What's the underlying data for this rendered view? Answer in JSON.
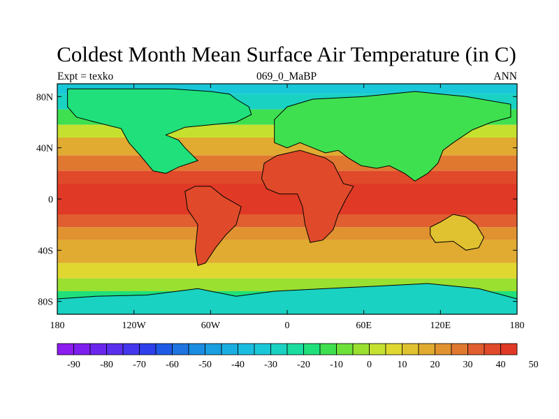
{
  "title": "Coldest Month Mean Surface Air Temperature (in C)",
  "subtitle_left": "Expt = texko",
  "subtitle_center": "069_0_MaBP",
  "subtitle_right": "ANN",
  "map": {
    "projection": "cylindrical-equidistant",
    "lon_range": [
      -180,
      180
    ],
    "lat_range": [
      -90,
      90
    ],
    "x_ticks": [
      {
        "value": -180,
        "label": "180"
      },
      {
        "value": -120,
        "label": "120W"
      },
      {
        "value": -60,
        "label": "60W"
      },
      {
        "value": 0,
        "label": "0"
      },
      {
        "value": 60,
        "label": "60E"
      },
      {
        "value": 120,
        "label": "120E"
      },
      {
        "value": 180,
        "label": "180"
      }
    ],
    "y_ticks": [
      {
        "value": 80,
        "label": "80N"
      },
      {
        "value": 40,
        "label": "40N"
      },
      {
        "value": 0,
        "label": "0"
      },
      {
        "value": -40,
        "label": "40S"
      },
      {
        "value": -80,
        "label": "80S"
      }
    ],
    "field_bands": [
      {
        "lat_from": 90,
        "lat_to": 82,
        "value": -35
      },
      {
        "lat_from": 82,
        "lat_to": 70,
        "value": -27
      },
      {
        "lat_from": 70,
        "lat_to": 58,
        "value": -12
      },
      {
        "lat_from": 58,
        "lat_to": 48,
        "value": 2
      },
      {
        "lat_from": 48,
        "lat_to": 34,
        "value": 15
      },
      {
        "lat_from": 34,
        "lat_to": 22,
        "value": 27
      },
      {
        "lat_from": 22,
        "lat_to": 12,
        "value": 36
      },
      {
        "lat_from": 12,
        "lat_to": -12,
        "value": 40
      },
      {
        "lat_from": -12,
        "lat_to": -22,
        "value": 33
      },
      {
        "lat_from": -22,
        "lat_to": -32,
        "value": 24
      },
      {
        "lat_from": -32,
        "lat_to": -50,
        "value": 16
      },
      {
        "lat_from": -50,
        "lat_to": -62,
        "value": 7
      },
      {
        "lat_from": -62,
        "lat_to": -72,
        "value": -3
      },
      {
        "lat_from": -72,
        "lat_to": -82,
        "value": -17
      },
      {
        "lat_from": -82,
        "lat_to": -90,
        "value": -26
      }
    ],
    "continents": [
      {
        "name": "north-america",
        "value": -20,
        "outline": [
          [
            -172,
            86
          ],
          [
            -90,
            86
          ],
          [
            -60,
            84
          ],
          [
            -45,
            82
          ],
          [
            -40,
            78
          ],
          [
            -30,
            72
          ],
          [
            -28,
            66
          ],
          [
            -40,
            60
          ],
          [
            -60,
            58
          ],
          [
            -80,
            56
          ],
          [
            -95,
            50
          ],
          [
            -85,
            46
          ],
          [
            -80,
            40
          ],
          [
            -70,
            30
          ],
          [
            -85,
            25
          ],
          [
            -95,
            20
          ],
          [
            -105,
            22
          ],
          [
            -115,
            34
          ],
          [
            -124,
            44
          ],
          [
            -130,
            55
          ],
          [
            -150,
            60
          ],
          [
            -165,
            64
          ],
          [
            -172,
            72
          ]
        ]
      },
      {
        "name": "europe-asia",
        "value": -12,
        "outline": [
          [
            -10,
            62
          ],
          [
            0,
            72
          ],
          [
            20,
            78
          ],
          [
            60,
            80
          ],
          [
            100,
            84
          ],
          [
            140,
            80
          ],
          [
            175,
            74
          ],
          [
            175,
            64
          ],
          [
            160,
            60
          ],
          [
            145,
            54
          ],
          [
            130,
            44
          ],
          [
            122,
            38
          ],
          [
            118,
            28
          ],
          [
            110,
            20
          ],
          [
            100,
            14
          ],
          [
            92,
            20
          ],
          [
            80,
            26
          ],
          [
            70,
            24
          ],
          [
            58,
            26
          ],
          [
            48,
            32
          ],
          [
            40,
            38
          ],
          [
            30,
            36
          ],
          [
            20,
            40
          ],
          [
            10,
            44
          ],
          [
            0,
            40
          ],
          [
            -10,
            44
          ]
        ]
      },
      {
        "name": "africa",
        "value": 38,
        "outline": [
          [
            -20,
            16
          ],
          [
            -18,
            28
          ],
          [
            -8,
            34
          ],
          [
            10,
            38
          ],
          [
            30,
            32
          ],
          [
            36,
            28
          ],
          [
            44,
            12
          ],
          [
            52,
            10
          ],
          [
            46,
            0
          ],
          [
            40,
            -12
          ],
          [
            36,
            -24
          ],
          [
            28,
            -32
          ],
          [
            18,
            -34
          ],
          [
            14,
            -20
          ],
          [
            12,
            -6
          ],
          [
            8,
            4
          ],
          [
            -6,
            4
          ],
          [
            -16,
            8
          ]
        ]
      },
      {
        "name": "south-america",
        "value": 38,
        "outline": [
          [
            -80,
            6
          ],
          [
            -72,
            10
          ],
          [
            -60,
            10
          ],
          [
            -50,
            2
          ],
          [
            -36,
            -6
          ],
          [
            -40,
            -20
          ],
          [
            -48,
            -28
          ],
          [
            -56,
            -38
          ],
          [
            -64,
            -50
          ],
          [
            -70,
            -52
          ],
          [
            -72,
            -40
          ],
          [
            -70,
            -20
          ],
          [
            -78,
            -8
          ]
        ]
      },
      {
        "name": "australia",
        "value": 14,
        "outline": [
          [
            112,
            -22
          ],
          [
            120,
            -18
          ],
          [
            130,
            -12
          ],
          [
            140,
            -14
          ],
          [
            148,
            -20
          ],
          [
            154,
            -30
          ],
          [
            150,
            -38
          ],
          [
            140,
            -40
          ],
          [
            130,
            -33
          ],
          [
            116,
            -34
          ],
          [
            112,
            -28
          ]
        ]
      },
      {
        "name": "antarctica",
        "value": -28,
        "outline": [
          [
            -180,
            -78
          ],
          [
            -150,
            -76
          ],
          [
            -110,
            -75
          ],
          [
            -70,
            -70
          ],
          [
            -40,
            -76
          ],
          [
            -10,
            -72
          ],
          [
            30,
            -70
          ],
          [
            70,
            -68
          ],
          [
            110,
            -66
          ],
          [
            150,
            -70
          ],
          [
            180,
            -78
          ],
          [
            180,
            -90
          ],
          [
            -180,
            -90
          ]
        ]
      }
    ]
  },
  "colorbar": {
    "levels": [
      -95,
      -90,
      -85,
      -80,
      -75,
      -70,
      -65,
      -60,
      -55,
      -50,
      -45,
      -40,
      -35,
      -30,
      -25,
      -20,
      -15,
      -10,
      -5,
      0,
      5,
      10,
      15,
      20,
      25,
      30,
      35,
      40,
      45,
      50,
      55
    ],
    "colors": [
      "#8c1cef",
      "#7f1fef",
      "#6b26ee",
      "#5a2fee",
      "#4437ee",
      "#2d40ec",
      "#1f5ae6",
      "#1f74e0",
      "#1a8de0",
      "#1a9fe0",
      "#1aaee0",
      "#19bde0",
      "#19c8d8",
      "#19d2c2",
      "#19dc9f",
      "#1fe07a",
      "#3ee04f",
      "#6ee03a",
      "#9ae030",
      "#c6e030",
      "#e0d830",
      "#e0c230",
      "#e0ab30",
      "#e09230",
      "#e07830",
      "#e05e30",
      "#e04a2a",
      "#e03a26"
    ],
    "labels": [
      {
        "value": -90,
        "text": "-90"
      },
      {
        "value": -80,
        "text": "-80"
      },
      {
        "value": -70,
        "text": "-70"
      },
      {
        "value": -60,
        "text": "-60"
      },
      {
        "value": -50,
        "text": "-50"
      },
      {
        "value": -40,
        "text": "-40"
      },
      {
        "value": -30,
        "text": "-30"
      },
      {
        "value": -20,
        "text": "-20"
      },
      {
        "value": -10,
        "text": "-10"
      },
      {
        "value": 0,
        "text": "0"
      },
      {
        "value": 10,
        "text": "10"
      },
      {
        "value": 20,
        "text": "20"
      },
      {
        "value": 30,
        "text": "30"
      },
      {
        "value": 40,
        "text": "40"
      },
      {
        "value": 50,
        "text": "50"
      }
    ]
  }
}
